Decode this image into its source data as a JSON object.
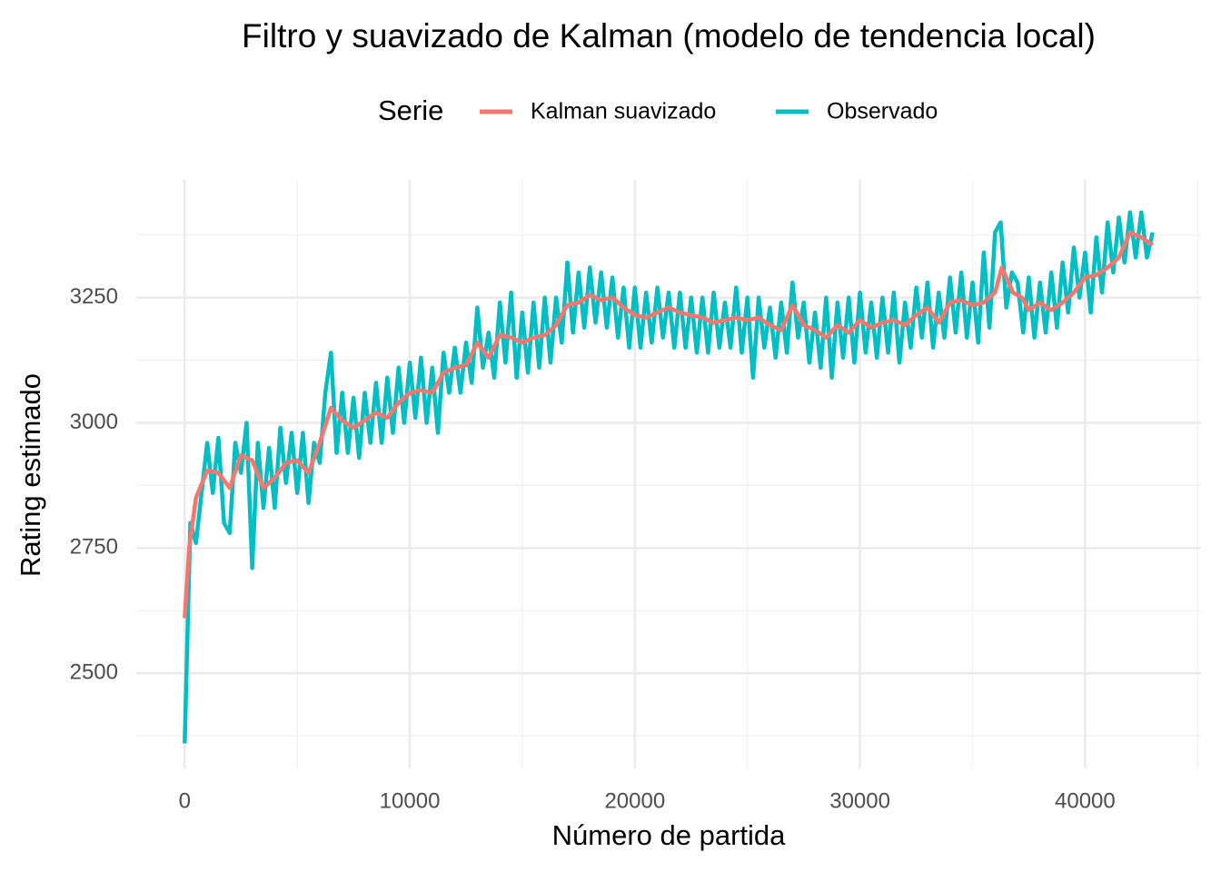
{
  "chart_data": {
    "type": "line",
    "title": "Filtro y suavizado de Kalman (modelo de tendencia local)",
    "legend_title": "Serie",
    "legend": "top",
    "xlabel": "Número de partida",
    "ylabel": "Rating estimado",
    "xlim": [
      -2150,
      45150
    ],
    "ylim": [
      2310,
      3485
    ],
    "xticks": [
      0,
      10000,
      20000,
      30000,
      40000
    ],
    "yticks": [
      2500,
      2750,
      3000,
      3250
    ],
    "xminor": [
      5000,
      15000,
      25000,
      35000,
      45000
    ],
    "yminor": [
      2375,
      2625,
      2875,
      3125,
      3375
    ],
    "grid": true,
    "series": [
      {
        "name": "Observado",
        "color": "#00BFC4",
        "x": [
          0,
          250,
          500,
          750,
          1000,
          1250,
          1500,
          1750,
          2000,
          2250,
          2500,
          2750,
          3000,
          3250,
          3500,
          3750,
          4000,
          4250,
          4500,
          4750,
          5000,
          5250,
          5500,
          5750,
          6000,
          6250,
          6500,
          6750,
          7000,
          7250,
          7500,
          7750,
          8000,
          8250,
          8500,
          8750,
          9000,
          9250,
          9500,
          9750,
          10000,
          10250,
          10500,
          10750,
          11000,
          11250,
          11500,
          11750,
          12000,
          12250,
          12500,
          12750,
          13000,
          13250,
          13500,
          13750,
          14000,
          14250,
          14500,
          14750,
          15000,
          15250,
          15500,
          15750,
          16000,
          16250,
          16500,
          16750,
          17000,
          17250,
          17500,
          17750,
          18000,
          18250,
          18500,
          18750,
          19000,
          19250,
          19500,
          19750,
          20000,
          20250,
          20500,
          20750,
          21000,
          21250,
          21500,
          21750,
          22000,
          22250,
          22500,
          22750,
          23000,
          23250,
          23500,
          23750,
          24000,
          24250,
          24500,
          24750,
          25000,
          25250,
          25500,
          25750,
          26000,
          26250,
          26500,
          26750,
          27000,
          27250,
          27500,
          27750,
          28000,
          28250,
          28500,
          28750,
          29000,
          29250,
          29500,
          29750,
          30000,
          30250,
          30500,
          30750,
          31000,
          31250,
          31500,
          31750,
          32000,
          32250,
          32500,
          32750,
          33000,
          33250,
          33500,
          33750,
          34000,
          34250,
          34500,
          34750,
          35000,
          35250,
          35500,
          35750,
          36000,
          36250,
          36500,
          36750,
          37000,
          37250,
          37500,
          37750,
          38000,
          38250,
          38500,
          38750,
          39000,
          39250,
          39500,
          39750,
          40000,
          40250,
          40500,
          40750,
          41000,
          41250,
          41500,
          41750,
          42000,
          42250,
          42500,
          42750,
          43000
        ],
        "values": [
          2360,
          2800,
          2760,
          2860,
          2960,
          2860,
          2970,
          2800,
          2780,
          2960,
          2900,
          3000,
          2710,
          2960,
          2830,
          2950,
          2830,
          2990,
          2880,
          2980,
          2860,
          2980,
          2840,
          2960,
          2920,
          3060,
          3140,
          2940,
          3060,
          2940,
          3050,
          2930,
          3060,
          2960,
          3080,
          2960,
          3090,
          2980,
          3110,
          3000,
          3120,
          3010,
          3130,
          3000,
          3110,
          2980,
          3140,
          3060,
          3150,
          3060,
          3160,
          3080,
          3230,
          3110,
          3180,
          3090,
          3240,
          3120,
          3260,
          3090,
          3220,
          3100,
          3240,
          3110,
          3250,
          3120,
          3250,
          3160,
          3320,
          3180,
          3300,
          3190,
          3310,
          3200,
          3300,
          3190,
          3290,
          3170,
          3270,
          3150,
          3270,
          3150,
          3260,
          3160,
          3270,
          3170,
          3260,
          3150,
          3260,
          3150,
          3250,
          3140,
          3250,
          3140,
          3260,
          3150,
          3240,
          3150,
          3270,
          3140,
          3250,
          3090,
          3250,
          3150,
          3230,
          3130,
          3240,
          3140,
          3280,
          3170,
          3240,
          3120,
          3220,
          3110,
          3250,
          3090,
          3240,
          3130,
          3250,
          3120,
          3260,
          3140,
          3240,
          3130,
          3250,
          3140,
          3260,
          3120,
          3240,
          3150,
          3270,
          3170,
          3280,
          3150,
          3260,
          3170,
          3290,
          3180,
          3300,
          3170,
          3280,
          3160,
          3340,
          3190,
          3380,
          3400,
          3230,
          3300,
          3280,
          3180,
          3290,
          3170,
          3280,
          3180,
          3300,
          3190,
          3320,
          3220,
          3350,
          3250,
          3340,
          3220,
          3370,
          3260,
          3400,
          3300,
          3410,
          3320,
          3420,
          3330,
          3420,
          3330,
          3380
        ]
      },
      {
        "name": "Kalman suavizado",
        "color": "#F8766D",
        "x": [
          0,
          200,
          500,
          1000,
          1500,
          2000,
          2500,
          3000,
          3500,
          4000,
          4500,
          5000,
          5500,
          6000,
          6500,
          7000,
          7500,
          8000,
          8500,
          9000,
          9500,
          10000,
          10500,
          11000,
          11500,
          12000,
          12500,
          13000,
          13500,
          14000,
          14500,
          15000,
          15500,
          16000,
          16500,
          17000,
          17500,
          18000,
          18500,
          19000,
          19500,
          20000,
          20500,
          21000,
          21500,
          22000,
          22500,
          23000,
          23500,
          24000,
          24500,
          25000,
          25500,
          26000,
          26500,
          27000,
          27500,
          28000,
          28500,
          29000,
          29500,
          30000,
          30500,
          31000,
          31500,
          32000,
          32500,
          33000,
          33500,
          34000,
          34500,
          35000,
          35500,
          36000,
          36300,
          36800,
          37200,
          37500,
          38000,
          38500,
          39000,
          39500,
          40000,
          40500,
          41000,
          41500,
          42000,
          42500,
          43000
        ],
        "values": [
          2610,
          2750,
          2850,
          2905,
          2900,
          2870,
          2935,
          2925,
          2870,
          2890,
          2920,
          2925,
          2900,
          2960,
          3030,
          3005,
          2990,
          3005,
          3020,
          3010,
          3040,
          3060,
          3065,
          3060,
          3100,
          3110,
          3115,
          3160,
          3130,
          3175,
          3170,
          3160,
          3170,
          3175,
          3195,
          3235,
          3240,
          3255,
          3245,
          3250,
          3230,
          3215,
          3210,
          3220,
          3230,
          3220,
          3215,
          3210,
          3200,
          3205,
          3210,
          3205,
          3210,
          3195,
          3185,
          3235,
          3195,
          3185,
          3170,
          3195,
          3180,
          3205,
          3190,
          3200,
          3205,
          3195,
          3215,
          3230,
          3200,
          3240,
          3245,
          3235,
          3240,
          3260,
          3310,
          3260,
          3250,
          3225,
          3240,
          3225,
          3240,
          3260,
          3290,
          3295,
          3310,
          3330,
          3380,
          3370,
          3355
        ]
      }
    ]
  }
}
